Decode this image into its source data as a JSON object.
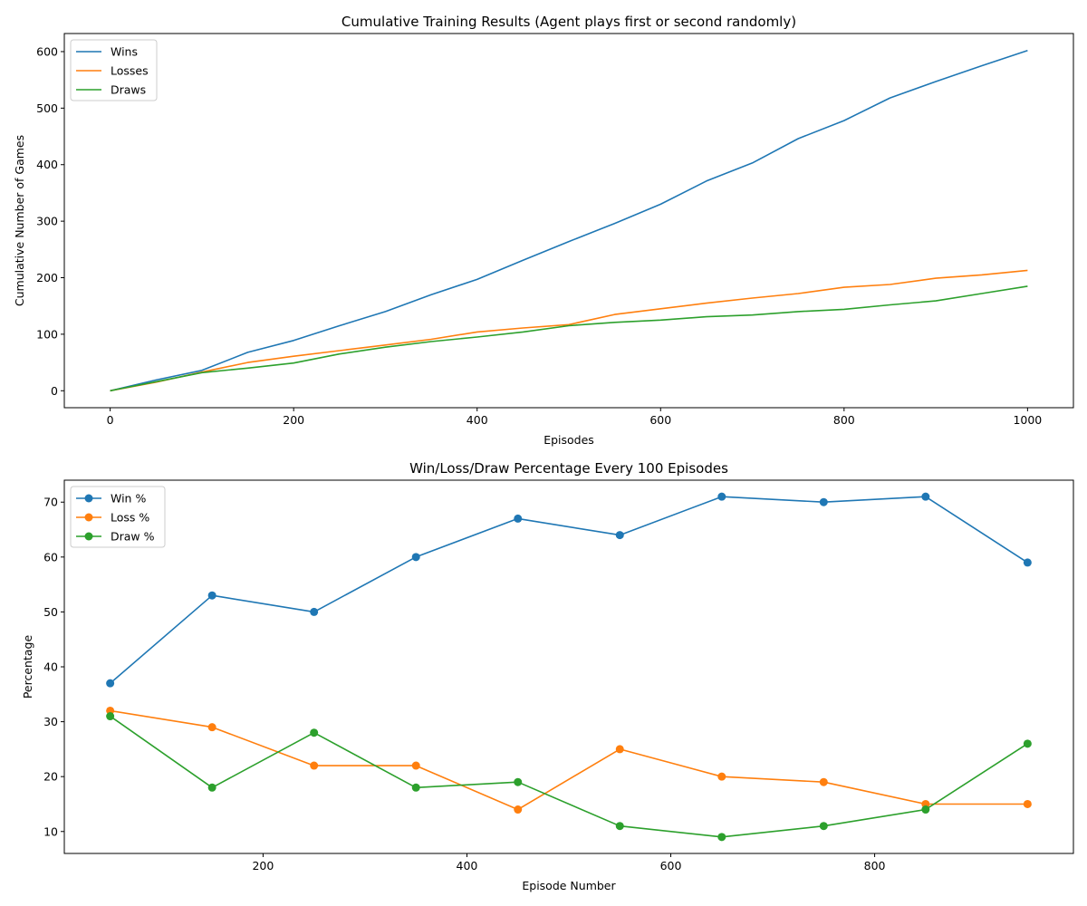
{
  "colors": {
    "win": "#1f77b4",
    "loss": "#ff7f0e",
    "draw": "#2ca02c"
  },
  "chart_data": [
    {
      "type": "line",
      "title": "Cumulative Training Results (Agent plays first or second randomly)",
      "xlabel": "Episodes",
      "ylabel": "Cumulative Number of Games",
      "xlim": [
        -50,
        1050
      ],
      "ylim": [
        -30,
        632
      ],
      "xticks": [
        "0",
        "200",
        "400",
        "600",
        "800",
        "1000"
      ],
      "yticks": [
        "0",
        "100",
        "200",
        "300",
        "400",
        "500",
        "600"
      ],
      "legend_position": "top-left",
      "grid": false,
      "x": [
        0,
        50,
        100,
        150,
        200,
        250,
        300,
        350,
        400,
        450,
        500,
        550,
        600,
        650,
        700,
        750,
        800,
        850,
        900,
        950,
        1000
      ],
      "series": [
        {
          "name": "Wins",
          "values": [
            0,
            19,
            36,
            68,
            89,
            115,
            140,
            170,
            197,
            231,
            264,
            296,
            330,
            371,
            403,
            446,
            478,
            518,
            547,
            575,
            602
          ]
        },
        {
          "name": "Losses",
          "values": [
            0,
            15,
            33,
            50,
            61,
            71,
            81,
            91,
            104,
            111,
            117,
            135,
            145,
            155,
            164,
            172,
            183,
            188,
            199,
            205,
            213
          ]
        },
        {
          "name": "Draws",
          "values": [
            0,
            16,
            32,
            40,
            49,
            65,
            77,
            87,
            95,
            104,
            115,
            121,
            125,
            131,
            134,
            140,
            144,
            152,
            159,
            172,
            185
          ]
        }
      ]
    },
    {
      "type": "line",
      "title": "Win/Loss/Draw Percentage Every 100 Episodes",
      "xlabel": "Episode Number",
      "ylabel": "Percentage",
      "xlim": [
        5,
        995
      ],
      "ylim": [
        6,
        74
      ],
      "xticks": [
        "200",
        "400",
        "600",
        "800"
      ],
      "yticks": [
        "10",
        "20",
        "30",
        "40",
        "50",
        "60",
        "70"
      ],
      "legend_position": "top-left",
      "grid": false,
      "x": [
        50,
        150,
        250,
        350,
        450,
        550,
        650,
        750,
        850,
        950
      ],
      "series": [
        {
          "name": "Win %",
          "values": [
            37,
            53,
            50,
            60,
            67,
            64,
            71,
            70,
            71,
            59
          ]
        },
        {
          "name": "Loss %",
          "values": [
            32,
            29,
            22,
            22,
            14,
            25,
            20,
            19,
            15,
            15
          ]
        },
        {
          "name": "Draw %",
          "values": [
            31,
            18,
            28,
            18,
            19,
            11,
            9,
            11,
            14,
            26
          ]
        }
      ]
    }
  ]
}
